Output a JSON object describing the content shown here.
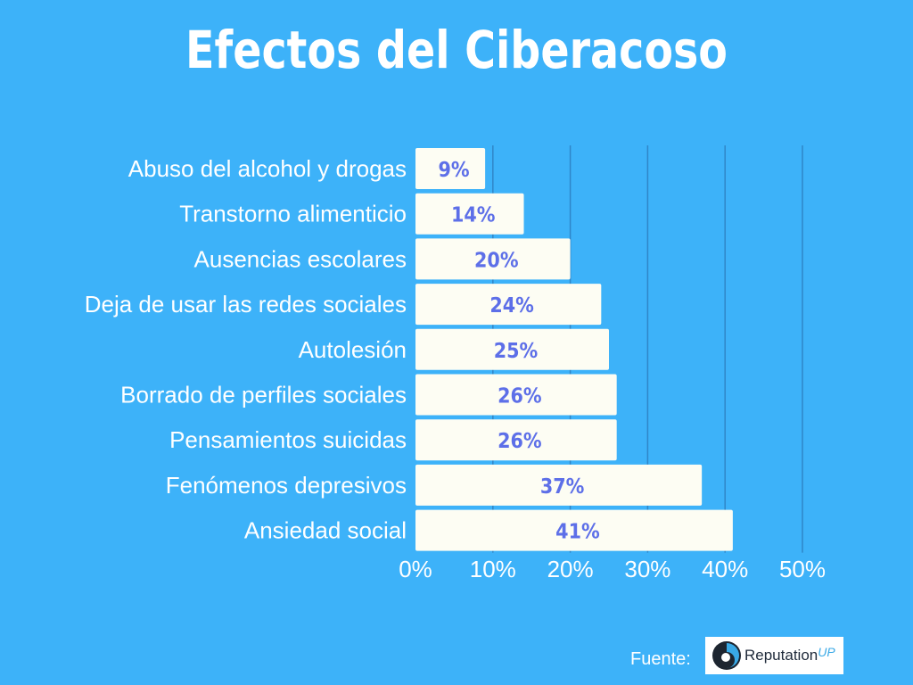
{
  "title": "Efectos del Ciberacoso",
  "chart_data": {
    "type": "bar",
    "orientation": "horizontal",
    "title": "Efectos del Ciberacoso",
    "categories": [
      "Abuso del alcohol y drogas",
      "Transtorno alimenticio",
      "Ausencias escolares",
      "Deja de usar las redes sociales",
      "Autolesión",
      "Borrado de perfiles sociales",
      "Pensamientos suicidas",
      "Fenómenos depresivos",
      "Ansiedad social"
    ],
    "values": [
      9,
      14,
      20,
      24,
      25,
      26,
      26,
      37,
      41
    ],
    "value_labels": [
      "9%",
      "14%",
      "20%",
      "24%",
      "25%",
      "26%",
      "26%",
      "37%",
      "41%"
    ],
    "xlim": [
      0,
      50
    ],
    "x_ticks": [
      0,
      10,
      20,
      30,
      40,
      50
    ],
    "x_tick_labels": [
      "0%",
      "10%",
      "20%",
      "30%",
      "40%",
      "50%"
    ],
    "grid": true,
    "colors": {
      "background": "#3db2f9",
      "bar": "#fdfdf3",
      "value_text": "#5d6fe8",
      "grid": "#2f86c8",
      "text": "#ffffff"
    }
  },
  "source": {
    "label": "Fuente:",
    "logo_text": "Reputation",
    "logo_superscript": "UP"
  }
}
